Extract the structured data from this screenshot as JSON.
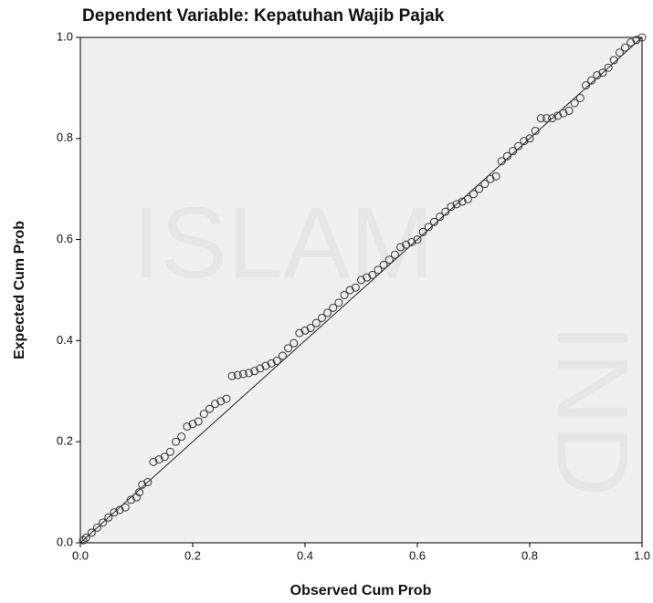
{
  "chart_data": {
    "type": "scatter",
    "title": "Dependent Variable: Kepatuhan Wajib Pajak",
    "x_label": "Observed Cum Prob",
    "y_label": "Expected Cum Prob",
    "watermark": [
      "ISLAM",
      "IND"
    ],
    "xlim": [
      0,
      1
    ],
    "ylim": [
      0,
      1
    ],
    "xticks": [
      {
        "value": 0,
        "label": "0.0"
      },
      0.2,
      0.4,
      0.6,
      0.8,
      {
        "value": 1,
        "label": "1.0"
      }
    ],
    "yticks": [
      {
        "value": 0,
        "label": "0.0"
      },
      0.2,
      0.4,
      0.6,
      0.8,
      {
        "value": 1,
        "label": "1.0"
      }
    ],
    "reference_line": true,
    "background": "#f0f0f0",
    "series": [
      {
        "color": "#333333",
        "x": [
          0.005,
          0.01,
          0.02,
          0.03,
          0.04,
          0.05,
          0.06,
          0.07,
          0.08,
          0.09,
          0.1,
          0.105,
          0.11,
          0.12,
          0.13,
          0.14,
          0.15,
          0.16,
          0.17,
          0.18,
          0.19,
          0.2,
          0.21,
          0.22,
          0.23,
          0.24,
          0.25,
          0.26,
          0.27,
          0.28,
          0.29,
          0.3,
          0.31,
          0.32,
          0.33,
          0.34,
          0.35,
          0.36,
          0.37,
          0.38,
          0.39,
          0.4,
          0.41,
          0.42,
          0.43,
          0.44,
          0.45,
          0.46,
          0.47,
          0.48,
          0.49,
          0.5,
          0.51,
          0.52,
          0.53,
          0.54,
          0.55,
          0.56,
          0.57,
          0.58,
          0.59,
          0.6,
          0.61,
          0.62,
          0.63,
          0.64,
          0.65,
          0.66,
          0.67,
          0.68,
          0.69,
          0.7,
          0.71,
          0.72,
          0.73,
          0.74,
          0.75,
          0.76,
          0.77,
          0.78,
          0.79,
          0.8,
          0.81,
          0.82,
          0.83,
          0.84,
          0.85,
          0.86,
          0.87,
          0.88,
          0.89,
          0.9,
          0.91,
          0.92,
          0.93,
          0.94,
          0.95,
          0.96,
          0.97,
          0.98,
          0.99,
          1.0
        ],
        "values": [
          0.005,
          0.01,
          0.02,
          0.03,
          0.04,
          0.05,
          0.06,
          0.065,
          0.07,
          0.085,
          0.09,
          0.1,
          0.115,
          0.12,
          0.16,
          0.165,
          0.17,
          0.18,
          0.2,
          0.21,
          0.23,
          0.235,
          0.24,
          0.255,
          0.265,
          0.275,
          0.28,
          0.285,
          0.33,
          0.332,
          0.334,
          0.336,
          0.34,
          0.345,
          0.35,
          0.355,
          0.36,
          0.37,
          0.385,
          0.395,
          0.415,
          0.42,
          0.425,
          0.435,
          0.445,
          0.455,
          0.465,
          0.475,
          0.49,
          0.5,
          0.505,
          0.52,
          0.525,
          0.53,
          0.54,
          0.55,
          0.56,
          0.57,
          0.585,
          0.59,
          0.595,
          0.6,
          0.615,
          0.625,
          0.635,
          0.645,
          0.655,
          0.665,
          0.67,
          0.675,
          0.68,
          0.69,
          0.7,
          0.71,
          0.72,
          0.725,
          0.755,
          0.765,
          0.775,
          0.785,
          0.795,
          0.8,
          0.815,
          0.84,
          0.84,
          0.84,
          0.845,
          0.85,
          0.855,
          0.87,
          0.88,
          0.905,
          0.915,
          0.925,
          0.93,
          0.94,
          0.955,
          0.97,
          0.98,
          0.99,
          0.995,
          1.0
        ]
      }
    ]
  }
}
